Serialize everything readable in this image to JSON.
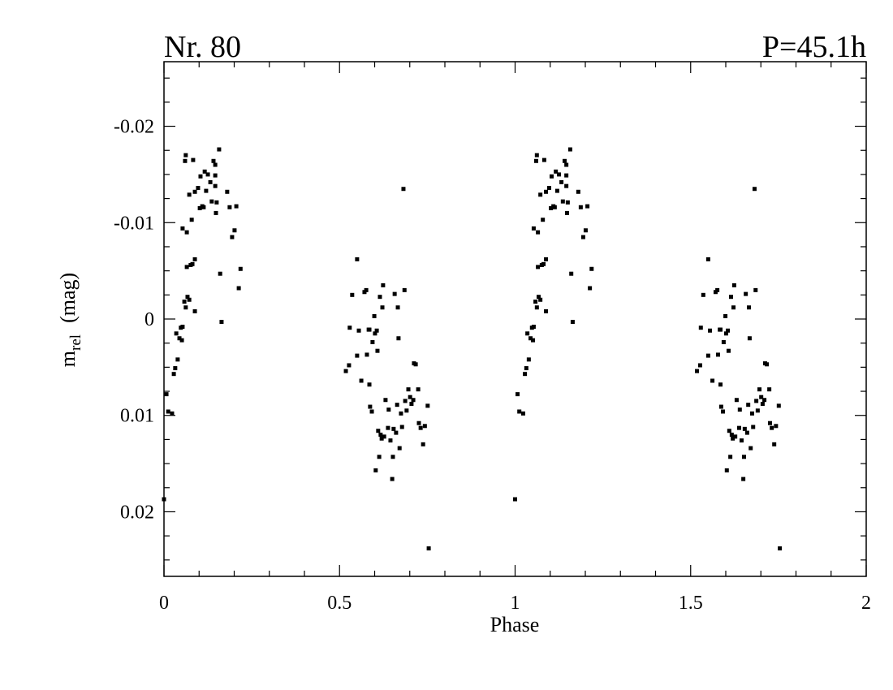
{
  "chart_data": {
    "type": "scatter",
    "title": "Nr. 80",
    "subtitle": "P=45.1h",
    "xlabel": "Phase",
    "ylabel": {
      "text": "m",
      "subscript": "rel",
      "unit": "(mag)"
    },
    "color": "#000000",
    "xlim": [
      0,
      2
    ],
    "ylim": [
      0.0267,
      -0.0267
    ],
    "xticks": [
      0,
      0.5,
      1,
      1.5,
      2
    ],
    "yticks": [
      -0.02,
      -0.01,
      0,
      0.01,
      0.02
    ],
    "xminorticks": [
      0.1,
      0.2,
      0.3,
      0.4,
      0.6,
      0.7,
      0.8,
      0.9,
      1.1,
      1.2,
      1.3,
      1.4,
      1.6,
      1.7,
      1.8,
      1.9
    ],
    "yminorticks": [
      -0.025,
      -0.0225,
      -0.0175,
      -0.015,
      -0.0125,
      -0.0075,
      -0.005,
      -0.0025,
      0.0025,
      0.005,
      0.0075,
      0.0125,
      0.015,
      0.0175,
      0.0225,
      0.025
    ],
    "x": [
      0.0,
      0.007,
      0.012,
      0.023,
      0.028,
      0.032,
      0.039,
      0.035,
      0.044,
      0.048,
      0.051,
      0.053,
      0.058,
      0.062,
      0.067,
      0.072,
      0.065,
      0.076,
      0.081,
      0.088,
      0.088,
      0.053,
      0.065,
      0.06,
      0.062,
      0.083,
      0.072,
      0.079,
      0.088,
      0.097,
      0.102,
      0.109,
      0.104,
      0.116,
      0.125,
      0.12,
      0.113,
      0.132,
      0.136,
      0.141,
      0.146,
      0.146,
      0.146,
      0.15,
      0.148,
      0.157,
      0.16,
      0.164,
      0.18,
      0.187,
      0.194,
      0.201,
      0.206,
      0.213,
      0.218,
      0.518,
      0.527,
      0.536,
      0.529,
      0.55,
      0.55,
      0.555,
      0.562,
      0.571,
      0.576,
      0.578,
      0.583,
      0.585,
      0.585,
      0.587,
      0.592,
      0.594,
      0.599,
      0.601,
      0.606,
      0.608,
      0.603,
      0.61,
      0.613,
      0.615,
      0.617,
      0.62,
      0.622,
      0.624,
      0.627,
      0.631,
      0.638,
      0.64,
      0.645,
      0.65,
      0.652,
      0.654,
      0.657,
      0.661,
      0.664,
      0.666,
      0.668,
      0.671,
      0.675,
      0.678,
      0.682,
      0.685,
      0.687,
      0.691,
      0.696,
      0.701,
      0.705,
      0.71,
      0.712,
      0.717,
      0.724,
      0.726,
      0.731,
      0.738,
      0.743,
      0.751,
      0.754,
      1.0,
      1.007,
      1.012,
      1.023,
      1.028,
      1.032,
      1.039,
      1.035,
      1.044,
      1.048,
      1.051,
      1.053,
      1.058,
      1.062,
      1.067,
      1.072,
      1.065,
      1.076,
      1.081,
      1.088,
      1.088,
      1.053,
      1.065,
      1.06,
      1.062,
      1.083,
      1.072,
      1.079,
      1.088,
      1.097,
      1.102,
      1.109,
      1.104,
      1.116,
      1.125,
      1.12,
      1.113,
      1.132,
      1.136,
      1.141,
      1.146,
      1.146,
      1.146,
      1.15,
      1.148,
      1.157,
      1.16,
      1.164,
      1.18,
      1.187,
      1.194,
      1.201,
      1.206,
      1.213,
      1.218,
      1.518,
      1.527,
      1.536,
      1.529,
      1.55,
      1.55,
      1.555,
      1.562,
      1.571,
      1.576,
      1.578,
      1.583,
      1.585,
      1.585,
      1.587,
      1.592,
      1.594,
      1.599,
      1.601,
      1.606,
      1.608,
      1.603,
      1.61,
      1.613,
      1.615,
      1.617,
      1.62,
      1.622,
      1.624,
      1.627,
      1.631,
      1.638,
      1.64,
      1.645,
      1.65,
      1.652,
      1.654,
      1.657,
      1.661,
      1.664,
      1.666,
      1.668,
      1.671,
      1.675,
      1.678,
      1.682,
      1.685,
      1.687,
      1.691,
      1.696,
      1.701,
      1.705,
      1.71,
      1.712,
      1.717,
      1.724,
      1.726,
      1.731,
      1.738,
      1.743,
      1.751,
      1.754
    ],
    "values": [
      0.0187,
      0.0078,
      0.0096,
      0.0098,
      0.0057,
      0.0051,
      0.0042,
      0.0015,
      0.002,
      0.0009,
      0.0022,
      0.0008,
      -0.0018,
      -0.0012,
      -0.0023,
      -0.002,
      -0.0054,
      -0.0056,
      -0.0057,
      -0.0062,
      -0.0008,
      -0.0094,
      -0.009,
      -0.0164,
      -0.017,
      -0.0165,
      -0.0129,
      -0.0103,
      -0.0132,
      -0.0136,
      -0.0115,
      -0.0117,
      -0.0148,
      -0.0153,
      -0.015,
      -0.0133,
      -0.0116,
      -0.0142,
      -0.0122,
      -0.0164,
      -0.016,
      -0.0149,
      -0.0138,
      -0.0121,
      -0.011,
      -0.0176,
      -0.0047,
      0.0003,
      -0.0132,
      -0.0116,
      -0.0085,
      -0.0092,
      -0.0117,
      -0.0032,
      -0.0052,
      0.0054,
      0.0048,
      -0.0025,
      0.0009,
      -0.0062,
      0.0038,
      0.0012,
      0.0064,
      -0.0028,
      -0.003,
      0.0037,
      0.0011,
      0.0011,
      0.0068,
      0.0091,
      0.0096,
      0.0024,
      -0.0003,
      0.0015,
      0.0012,
      0.0033,
      0.0157,
      0.0116,
      0.0143,
      -0.0023,
      0.012,
      0.0124,
      -0.0012,
      -0.0035,
      0.0122,
      0.0084,
      0.0113,
      0.0094,
      0.0126,
      0.0166,
      0.0143,
      0.0114,
      -0.0026,
      0.0118,
      0.0089,
      -0.0012,
      0.002,
      0.0134,
      0.0098,
      0.0112,
      -0.0135,
      -0.003,
      0.0085,
      0.0095,
      0.0073,
      0.0081,
      0.0088,
      0.0084,
      0.0046,
      0.0047,
      0.0073,
      0.0108,
      0.0113,
      0.013,
      0.0111,
      0.009,
      0.0238,
      0.0187,
      0.0078,
      0.0096,
      0.0098,
      0.0057,
      0.0051,
      0.0042,
      0.0015,
      0.002,
      0.0009,
      0.0022,
      0.0008,
      -0.0018,
      -0.0012,
      -0.0023,
      -0.002,
      -0.0054,
      -0.0056,
      -0.0057,
      -0.0062,
      -0.0008,
      -0.0094,
      -0.009,
      -0.0164,
      -0.017,
      -0.0165,
      -0.0129,
      -0.0103,
      -0.0132,
      -0.0136,
      -0.0115,
      -0.0117,
      -0.0148,
      -0.0153,
      -0.015,
      -0.0133,
      -0.0116,
      -0.0142,
      -0.0122,
      -0.0164,
      -0.016,
      -0.0149,
      -0.0138,
      -0.0121,
      -0.011,
      -0.0176,
      -0.0047,
      0.0003,
      -0.0132,
      -0.0116,
      -0.0085,
      -0.0092,
      -0.0117,
      -0.0032,
      -0.0052,
      0.0054,
      0.0048,
      -0.0025,
      0.0009,
      -0.0062,
      0.0038,
      0.0012,
      0.0064,
      -0.0028,
      -0.003,
      0.0037,
      0.0011,
      0.0011,
      0.0068,
      0.0091,
      0.0096,
      0.0024,
      -0.0003,
      0.0015,
      0.0012,
      0.0033,
      0.0157,
      0.0116,
      0.0143,
      -0.0023,
      0.012,
      0.0124,
      -0.0012,
      -0.0035,
      0.0122,
      0.0084,
      0.0113,
      0.0094,
      0.0126,
      0.0166,
      0.0143,
      0.0114,
      -0.0026,
      0.0118,
      0.0089,
      -0.0012,
      0.002,
      0.0134,
      0.0098,
      0.0112,
      -0.0135,
      -0.003,
      0.0085,
      0.0095,
      0.0073,
      0.0081,
      0.0088,
      0.0084,
      0.0046,
      0.0047,
      0.0073,
      0.0108,
      0.0113,
      0.013,
      0.0111,
      0.009,
      0.0238
    ]
  }
}
